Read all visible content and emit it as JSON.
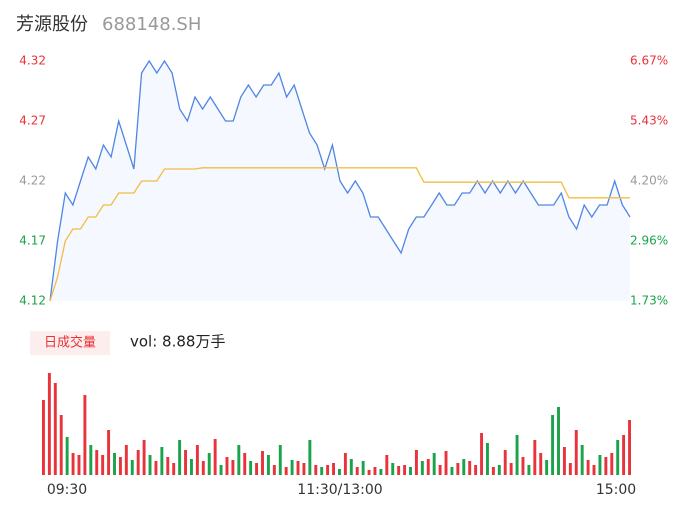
{
  "chart_data": {
    "type": "intraday",
    "title": "芳源股份",
    "subtitle": "688148.SH",
    "ylim": [
      4.12,
      4.32
    ],
    "yticks": [
      4.32,
      4.27,
      4.22,
      4.17,
      4.12
    ],
    "y2lim": [
      1.73,
      6.67
    ],
    "y2ticks": [
      {
        "value": 6.67,
        "label": "6.67%"
      },
      {
        "value": 5.43,
        "label": "5.43%"
      },
      {
        "value": 4.2,
        "label": "4.20%"
      },
      {
        "value": 2.96,
        "label": "2.96%"
      },
      {
        "value": 1.73,
        "label": "1.73%"
      }
    ],
    "up_color": "#e8333a",
    "down_color": "#1aa34a",
    "neutral_color": "#999999",
    "series": [
      {
        "name": "price",
        "color": "#4f86e6",
        "values": [
          4.12,
          4.17,
          4.21,
          4.2,
          4.22,
          4.24,
          4.23,
          4.25,
          4.24,
          4.27,
          4.25,
          4.23,
          4.31,
          4.32,
          4.31,
          4.32,
          4.31,
          4.28,
          4.27,
          4.29,
          4.28,
          4.29,
          4.28,
          4.27,
          4.27,
          4.29,
          4.3,
          4.29,
          4.3,
          4.3,
          4.31,
          4.29,
          4.3,
          4.28,
          4.26,
          4.25,
          4.23,
          4.25,
          4.22,
          4.21,
          4.22,
          4.21,
          4.19,
          4.19,
          4.18,
          4.17,
          4.16,
          4.18,
          4.19,
          4.19,
          4.2,
          4.21,
          4.2,
          4.2,
          4.21,
          4.21,
          4.22,
          4.21,
          4.22,
          4.21,
          4.22,
          4.21,
          4.22,
          4.21,
          4.2,
          4.2,
          4.2,
          4.21,
          4.19,
          4.18,
          4.2,
          4.19,
          4.2,
          4.2,
          4.22,
          4.2,
          4.19
        ]
      },
      {
        "name": "average",
        "color": "#f2bd42",
        "values": [
          4.12,
          4.14,
          4.17,
          4.18,
          4.18,
          4.19,
          4.19,
          4.2,
          4.2,
          4.21,
          4.21,
          4.21,
          4.22,
          4.22,
          4.22,
          4.23,
          4.23,
          4.23,
          4.23,
          4.23,
          4.231,
          4.231,
          4.231,
          4.231,
          4.231,
          4.231,
          4.231,
          4.231,
          4.231,
          4.231,
          4.231,
          4.231,
          4.231,
          4.231,
          4.231,
          4.231,
          4.231,
          4.231,
          4.231,
          4.231,
          4.231,
          4.231,
          4.231,
          4.231,
          4.231,
          4.231,
          4.231,
          4.231,
          4.231,
          4.219,
          4.219,
          4.219,
          4.219,
          4.219,
          4.219,
          4.219,
          4.219,
          4.219,
          4.219,
          4.219,
          4.219,
          4.219,
          4.219,
          4.219,
          4.219,
          4.219,
          4.219,
          4.219,
          4.206,
          4.206,
          4.206,
          4.206,
          4.206,
          4.206,
          4.206,
          4.206,
          4.206
        ]
      }
    ],
    "volume_label": "日成交量",
    "volume_text": "vol: 8.88万手",
    "volume": {
      "ylim": [
        0,
        110
      ],
      "values": [
        75,
        102,
        92,
        60,
        38,
        22,
        20,
        80,
        30,
        25,
        20,
        45,
        22,
        18,
        30,
        15,
        25,
        35,
        20,
        14,
        28,
        18,
        12,
        35,
        25,
        16,
        30,
        14,
        22,
        36,
        10,
        18,
        15,
        30,
        22,
        14,
        12,
        24,
        20,
        10,
        30,
        8,
        15,
        14,
        12,
        35,
        10,
        8,
        10,
        12,
        6,
        22,
        16,
        8,
        14,
        5,
        8,
        6,
        20,
        12,
        9,
        10,
        8,
        25,
        14,
        16,
        22,
        10,
        24,
        8,
        12,
        16,
        14,
        10,
        42,
        32,
        8,
        10,
        25,
        12,
        40,
        18,
        10,
        35,
        22,
        15,
        60,
        68,
        28,
        12,
        45,
        30,
        15,
        10,
        20,
        18,
        22,
        35,
        40,
        55
      ],
      "rising": [
        true,
        true,
        true,
        true,
        false,
        true,
        true,
        true,
        false,
        true,
        true,
        true,
        false,
        true,
        true,
        false,
        true,
        true,
        false,
        true,
        false,
        true,
        true,
        false,
        true,
        false,
        true,
        true,
        false,
        true,
        false,
        true,
        true,
        false,
        true,
        false,
        true,
        true,
        false,
        true,
        false,
        true,
        false,
        true,
        true,
        false,
        true,
        false,
        true,
        true,
        false,
        true,
        false,
        true,
        false,
        true,
        true,
        false,
        true,
        false,
        true,
        true,
        false,
        true,
        false,
        true,
        false,
        true,
        true,
        false,
        true,
        false,
        true,
        true,
        true,
        false,
        true,
        false,
        true,
        true,
        false,
        true,
        false,
        true,
        true,
        false,
        false,
        false,
        true,
        true,
        true,
        false,
        true,
        true,
        false,
        true,
        true,
        false,
        true,
        true
      ]
    },
    "xticks": [
      "09:30",
      "11:30/13:00",
      "15:00"
    ]
  }
}
